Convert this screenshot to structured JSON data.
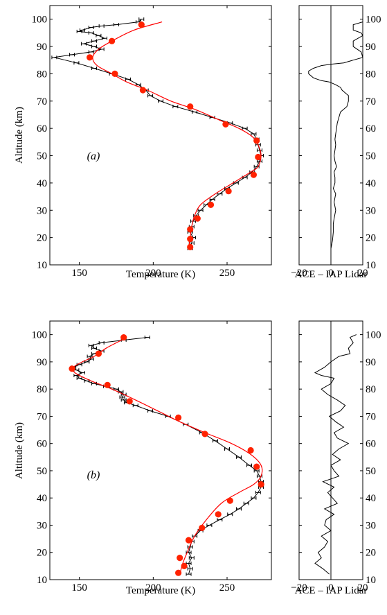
{
  "chart_data": [
    {
      "type": "line",
      "panel_label": "(a)",
      "xlabel": "Temperature (K)",
      "ylabel": "Altitude (km)",
      "xlim": [
        130,
        280
      ],
      "ylim": [
        10,
        105
      ],
      "xticks": [
        150,
        200,
        250
      ],
      "yticks": [
        10,
        20,
        30,
        40,
        50,
        60,
        70,
        80,
        90,
        100
      ],
      "series": [
        {
          "color": "#000000",
          "style": "line-with-horizontal-errorbars",
          "x": [
            225,
            226,
            227,
            225,
            226,
            227,
            229,
            232,
            236,
            240,
            245,
            250,
            256,
            262,
            267,
            270,
            272,
            273,
            272,
            271,
            270,
            268,
            262,
            252,
            240,
            228,
            215,
            205,
            198,
            195,
            190,
            183,
            172,
            160,
            148,
            133,
            145,
            158,
            165,
            160,
            153,
            160,
            167,
            163,
            158,
            150,
            152,
            158,
            165,
            175,
            190,
            192
          ],
          "y": [
            16,
            18,
            20,
            22,
            24,
            26,
            28,
            30,
            32,
            34,
            36,
            38,
            40,
            42,
            44,
            46,
            48,
            50,
            52,
            54,
            56,
            58,
            60,
            62,
            64,
            66,
            68,
            70,
            72,
            74,
            76,
            78,
            80,
            82,
            84,
            86,
            87,
            88,
            89,
            90,
            91,
            92,
            93,
            94,
            95,
            95.5,
            96,
            97,
            97.5,
            98,
            99,
            100
          ]
        },
        {
          "color": "#ff0000",
          "style": "smooth-line",
          "x": [
            224,
            225,
            226,
            228,
            232,
            242,
            254,
            266,
            271,
            273,
            271,
            267,
            258,
            245,
            228,
            212,
            196,
            182,
            172,
            162,
            159,
            163,
            172,
            187,
            206
          ],
          "y": [
            16,
            20,
            24,
            28,
            32,
            36,
            40,
            44,
            46,
            50,
            54,
            57,
            60,
            63,
            67,
            70,
            74,
            77,
            80,
            83,
            86,
            89,
            92,
            96,
            99
          ]
        },
        {
          "color": "#ff2200",
          "style": "markers",
          "x": [
            225,
            225,
            225,
            230,
            239,
            251,
            268,
            271,
            270,
            249,
            225,
            193,
            174,
            157,
            172,
            192
          ],
          "y": [
            16.5,
            19.5,
            23,
            27,
            32,
            37,
            43,
            49.5,
            55.5,
            61.5,
            68,
            74,
            80,
            86,
            92,
            98
          ]
        }
      ]
    },
    {
      "type": "line",
      "xlabel": "ACE – IAP Lidar",
      "xlim": [
        -20,
        20
      ],
      "ylim": [
        10,
        105
      ],
      "xticks": [
        "−20",
        "0",
        "20"
      ],
      "yticks": [
        10,
        20,
        30,
        40,
        50,
        60,
        70,
        80,
        90,
        100
      ],
      "series": [
        {
          "color": "#000000",
          "style": "line",
          "x": [
            0,
            1,
            1.5,
            1.5,
            2,
            3,
            2,
            3,
            1.5,
            2.5,
            2.5,
            2,
            3.5,
            2.5,
            2,
            2.5,
            3,
            2.5,
            3,
            3.5,
            4,
            5,
            6,
            8,
            10,
            11,
            11,
            9,
            7,
            6,
            3,
            -1,
            -6,
            -11,
            -14,
            -14,
            -11,
            -6,
            0,
            8,
            14,
            20,
            19,
            14,
            14,
            20,
            19,
            14,
            14,
            20
          ],
          "y": [
            16,
            19,
            22,
            25,
            27,
            30,
            33,
            36,
            38,
            40,
            42,
            44,
            46,
            48,
            50,
            52,
            54,
            56,
            58,
            60,
            62,
            64,
            66,
            67,
            68,
            70,
            72,
            73,
            74,
            75,
            76,
            77,
            77.5,
            78.5,
            80,
            81,
            82,
            83,
            83.5,
            84,
            85,
            86,
            88,
            90,
            92,
            94,
            95,
            96,
            98,
            99
          ]
        }
      ]
    },
    {
      "type": "line",
      "panel_label": "(b)",
      "xlabel": "Temperature (K)",
      "ylabel": "Altitude (km)",
      "xlim": [
        130,
        280
      ],
      "ylim": [
        10,
        105
      ],
      "xticks": [
        150,
        200,
        250
      ],
      "yticks": [
        10,
        20,
        30,
        40,
        50,
        60,
        70,
        80,
        90,
        100
      ],
      "series": [
        {
          "color": "#000000",
          "style": "line-with-horizontal-errorbars",
          "x": [
            224,
            225,
            224,
            226,
            224,
            225,
            226,
            228,
            232,
            238,
            245,
            252,
            258,
            263,
            268,
            271,
            273,
            273,
            272,
            270,
            265,
            258,
            250,
            242,
            233,
            222,
            210,
            198,
            188,
            182,
            180,
            179,
            180,
            178,
            175,
            168,
            160,
            155,
            150,
            148,
            152,
            148,
            146,
            150,
            155,
            158,
            157,
            160,
            165,
            160,
            158,
            165,
            180,
            196
          ],
          "y": [
            12,
            14,
            16,
            18,
            20,
            22,
            24,
            26,
            28,
            30,
            32,
            34,
            36,
            38,
            40,
            42,
            44,
            46,
            48,
            50,
            52,
            55,
            58,
            61,
            64,
            67,
            70,
            72,
            74,
            75,
            76,
            77,
            78,
            79,
            80,
            81,
            82,
            83,
            84,
            85,
            86,
            87,
            88,
            89,
            90,
            91,
            92,
            93,
            94,
            95,
            96,
            97,
            98,
            99
          ]
        },
        {
          "color": "#ff0000",
          "style": "smooth-line",
          "x": [
            218,
            220,
            223,
            228,
            236,
            246,
            258,
            268,
            273,
            273,
            266,
            253,
            235,
            218,
            203,
            188,
            172,
            158,
            147,
            146,
            152,
            160,
            168,
            175,
            182
          ],
          "y": [
            12,
            16,
            20,
            26,
            32,
            38,
            42,
            45,
            48,
            52,
            56,
            60,
            64,
            68,
            72,
            76,
            80,
            83,
            86,
            88,
            90,
            92,
            95,
            97,
            99
          ]
        },
        {
          "color": "#ff2200",
          "style": "markers",
          "x": [
            217,
            218,
            221,
            224,
            233,
            244,
            252,
            273,
            270,
            266,
            235,
            217,
            184,
            169,
            145,
            163,
            180
          ],
          "y": [
            12.5,
            18,
            15,
            24.5,
            29,
            34,
            39,
            45,
            51.5,
            57.5,
            63.5,
            69.5,
            75.5,
            81.5,
            87.5,
            93,
            99
          ]
        }
      ]
    },
    {
      "type": "line",
      "xlabel": "ACE – IAP Lidar",
      "xlim": [
        -20,
        20
      ],
      "ylim": [
        10,
        105
      ],
      "xticks": [
        "−20",
        "0",
        "20"
      ],
      "yticks": [
        10,
        20,
        30,
        40,
        50,
        60,
        70,
        80,
        90,
        100
      ],
      "series": [
        {
          "color": "#000000",
          "style": "line",
          "x": [
            -1,
            -5,
            -10,
            -6,
            -8,
            -4,
            -2,
            -6,
            0,
            -4,
            -3,
            2,
            -4,
            4,
            1,
            -2,
            2,
            -5,
            5,
            2,
            0,
            6,
            1,
            5,
            11,
            4,
            2,
            8,
            3,
            -1,
            6,
            9,
            4,
            -2,
            -6,
            0,
            2,
            -6,
            -10,
            -4,
            0,
            5,
            12,
            11,
            14,
            12,
            16
          ],
          "y": [
            12,
            14,
            16,
            18,
            20,
            22,
            24,
            26,
            28,
            30,
            32,
            34,
            36,
            38,
            40,
            42,
            44,
            46,
            48,
            50,
            52,
            54,
            56,
            58,
            60,
            62,
            64,
            66,
            68,
            70,
            72,
            74,
            76,
            78,
            80,
            82,
            84,
            85,
            86,
            88,
            90,
            92,
            93,
            95,
            97,
            99,
            100
          ]
        }
      ]
    }
  ]
}
